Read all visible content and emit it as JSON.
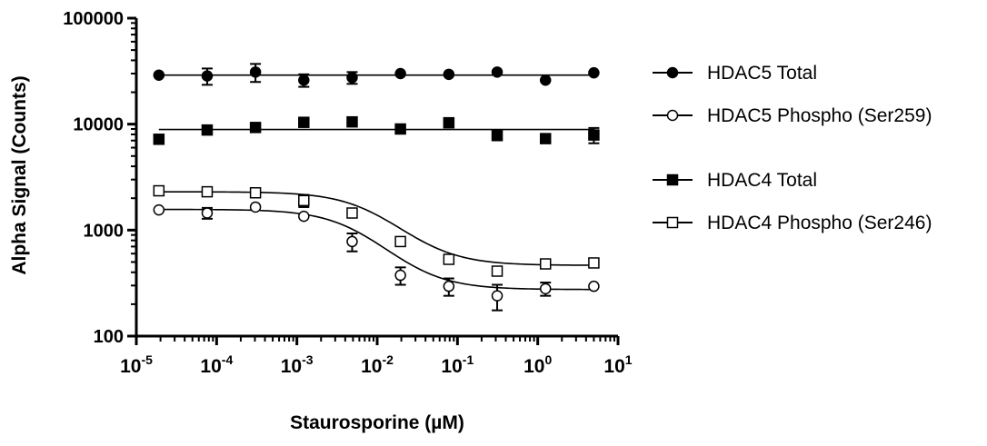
{
  "chart_data": {
    "type": "scatter",
    "title": "",
    "xlabel": "Staurosporine (µM)",
    "ylabel": "Alpha Signal (Counts)",
    "xscale": "log",
    "yscale": "log",
    "xlim": [
      1e-05,
      10
    ],
    "ylim": [
      100,
      100000
    ],
    "x_ticks": [
      {
        "base": "10",
        "exp": "-5",
        "value": 1e-05
      },
      {
        "base": "10",
        "exp": "-4",
        "value": 0.0001
      },
      {
        "base": "10",
        "exp": "-3",
        "value": 0.001
      },
      {
        "base": "10",
        "exp": "-2",
        "value": 0.01
      },
      {
        "base": "10",
        "exp": "-1",
        "value": 0.1
      },
      {
        "base": "10",
        "exp": "0",
        "value": 1
      },
      {
        "base": "10",
        "exp": "1",
        "value": 10
      }
    ],
    "y_ticks": [
      {
        "label": "100",
        "value": 100
      },
      {
        "label": "1000",
        "value": 1000
      },
      {
        "label": "10000",
        "value": 10000
      },
      {
        "label": "100000",
        "value": 100000
      }
    ],
    "x": [
      1.91e-05,
      7.63e-05,
      0.000305,
      0.00122,
      0.00488,
      0.0195,
      0.0781,
      0.3125,
      1.25,
      5.0
    ],
    "legend_position": "right",
    "series": [
      {
        "name": "HDAC5 Total",
        "marker": "filled-circle",
        "values": [
          29000,
          28500,
          31000,
          26000,
          27500,
          30000,
          29500,
          31000,
          26000,
          30500
        ],
        "errors": [
          0,
          5000,
          6000,
          3500,
          3500,
          0,
          0,
          0,
          0,
          0
        ],
        "fit": {
          "kind": "constant",
          "value": 29000
        }
      },
      {
        "name": "HDAC5 Phospho (Ser259)",
        "marker": "open-circle",
        "values": [
          1550,
          1450,
          1650,
          1350,
          780,
          375,
          295,
          240,
          280,
          295
        ],
        "errors": [
          0,
          170,
          0,
          0,
          150,
          70,
          55,
          65,
          40,
          0
        ],
        "fit": {
          "kind": "sigmoid",
          "top": 1570,
          "bottom": 275,
          "log_ic50": -2.2,
          "hill": -1.2
        }
      },
      {
        "name": "HDAC4 Total",
        "marker": "filled-square",
        "values": [
          7200,
          8800,
          9300,
          10400,
          10500,
          9000,
          10300,
          7800,
          7300,
          7900
        ],
        "errors": [
          0,
          0,
          0,
          0,
          0,
          0,
          0,
          0,
          0,
          1300
        ],
        "fit": {
          "kind": "constant",
          "value": 8900
        }
      },
      {
        "name": "HDAC4 Phospho (Ser246)",
        "marker": "open-square",
        "values": [
          2350,
          2300,
          2250,
          1900,
          1450,
          780,
          530,
          410,
          480,
          490
        ],
        "errors": [
          0,
          0,
          0,
          250,
          0,
          0,
          0,
          0,
          0,
          0
        ],
        "fit": {
          "kind": "sigmoid",
          "top": 2300,
          "bottom": 465,
          "log_ic50": -2.0,
          "hill": -1.2
        }
      }
    ]
  }
}
